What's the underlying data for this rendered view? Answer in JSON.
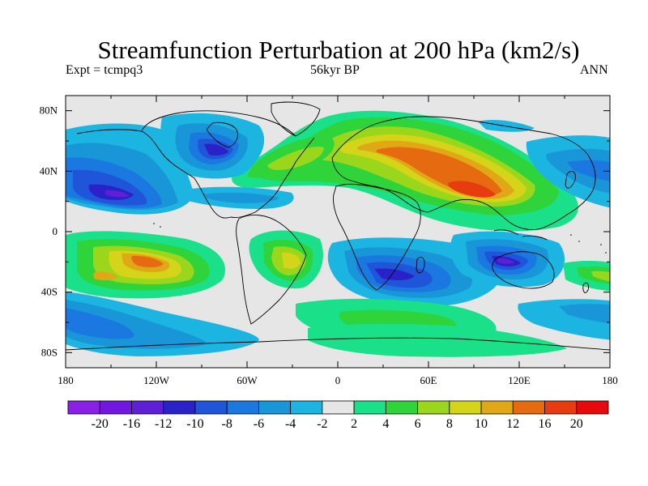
{
  "title": "Streamfunction Perturbation at 200 hPa (km2/s)",
  "subtitle_left": "Expt = tcmpq3",
  "subtitle_center": "56kyr BP",
  "subtitle_right": "ANN",
  "map": {
    "projection": "cylindrical equidistant",
    "lon_range": [
      -180,
      180
    ],
    "lat_range": [
      -90,
      90
    ],
    "x_ticks": [
      "180",
      "120W",
      "60W",
      "0",
      "60E",
      "120E",
      "180"
    ],
    "y_ticks": [
      "80N",
      "40N",
      "0",
      "40S",
      "80S"
    ]
  },
  "colorbar": {
    "levels": [
      "-20",
      "-16",
      "-12",
      "-10",
      "-8",
      "-6",
      "-4",
      "-2",
      "2",
      "4",
      "6",
      "8",
      "10",
      "12",
      "16",
      "20"
    ],
    "colors": [
      "#8a1fe6",
      "#7018e0",
      "#5f1fd6",
      "#2a22c8",
      "#1f55d8",
      "#1a78e0",
      "#1896d8",
      "#1cb4e0",
      "#e6e6e6",
      "#1ae08a",
      "#2ed43a",
      "#9ad61c",
      "#d4d418",
      "#e0a816",
      "#e66a10",
      "#e63c10",
      "#e60a0a"
    ]
  }
}
